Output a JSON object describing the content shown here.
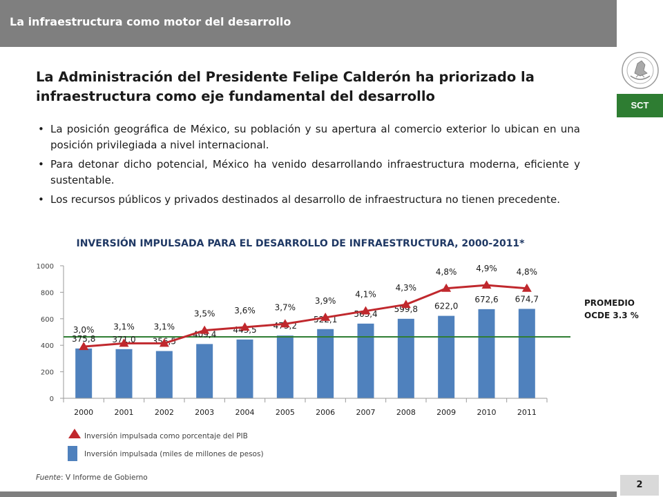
{
  "header": {
    "title": "La infraestructura como motor del desarrollo",
    "badge": "SCT"
  },
  "headline": "La Administración del Presidente Felipe Calderón ha priorizado la infraestructura como eje fundamental del desarrollo",
  "bullets": [
    "La posición geográfica de México, su población y su apertura al comercio exterior lo ubican en una posición privilegiada a nivel internacional.",
    "Para detonar dicho potencial, México ha venido desarrollando infraestructura moderna, eficiente y sustentable.",
    "Los recursos públicos y privados destinados al desarrollo de infraestructura no tienen precedente."
  ],
  "chart_data": {
    "type": "bar",
    "title": "INVERSIÓN IMPULSADA PARA EL DESARROLLO DE INFRAESTRUCTURA, 2000-2011*",
    "categories": [
      "2000",
      "2001",
      "2002",
      "2003",
      "2004",
      "2005",
      "2006",
      "2007",
      "2008",
      "2009",
      "2010",
      "2011"
    ],
    "series": [
      {
        "name": "Inversión impulsada (miles de millones de pesos)",
        "kind": "bar",
        "color": "#4f81bd",
        "values": [
          375.8,
          371.0,
          356.5,
          409.4,
          443.5,
          473.2,
          522.1,
          563.4,
          599.8,
          622.0,
          672.6,
          674.7
        ],
        "labels": [
          "375,8",
          "371,0",
          "356,5",
          "409,4",
          "443,5",
          "473,2",
          "522,1",
          "563,4",
          "599,8",
          "622,0",
          "672,6",
          "674,7"
        ]
      },
      {
        "name": "Inversión impulsada como porcentaje del PIB",
        "kind": "line",
        "color": "#c0282d",
        "values": [
          3.0,
          3.1,
          3.1,
          3.5,
          3.6,
          3.7,
          3.9,
          4.1,
          4.3,
          4.8,
          4.9,
          4.8
        ],
        "labels": [
          "3,0%",
          "3,1%",
          "3,1%",
          "3,5%",
          "3,6%",
          "3,7%",
          "3,9%",
          "4,1%",
          "4,3%",
          "4,8%",
          "4,9%",
          "4,8%"
        ]
      }
    ],
    "reference_line": {
      "label": "PROMEDIO\nOCDE 3.3 %",
      "value": 3.3,
      "color": "#2e7d32"
    },
    "yticks": [
      "0",
      "200",
      "400",
      "600",
      "800",
      "1000"
    ],
    "ylim": [
      0,
      1000
    ],
    "y2lim": [
      1.4,
      5.5
    ],
    "grid": false,
    "legend_position": "bottom-left"
  },
  "source": {
    "label": "Fuente",
    "text": ": V Informe de Gobierno"
  },
  "page_number": "2"
}
